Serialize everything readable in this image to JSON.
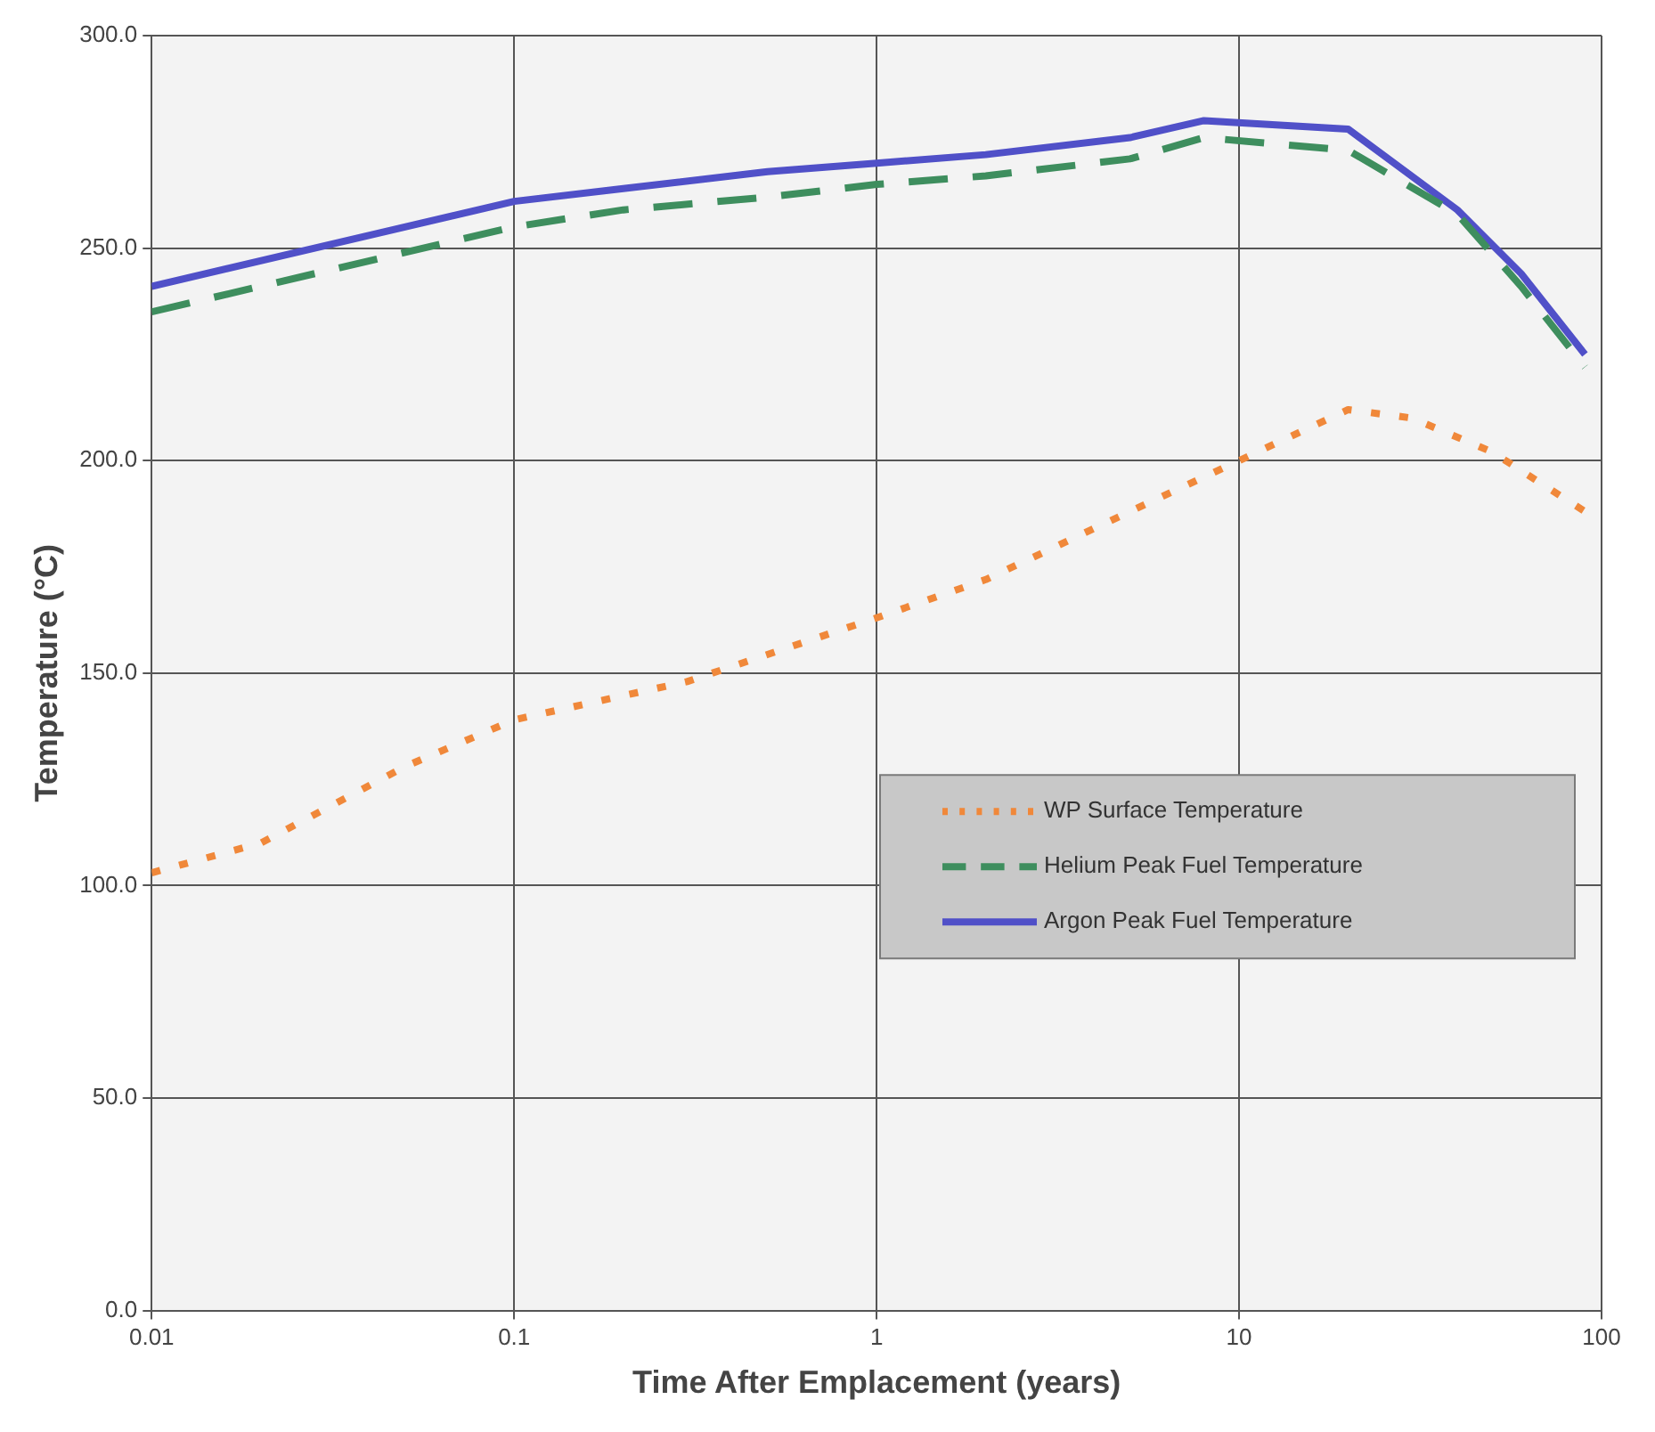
{
  "chart_data": {
    "type": "line",
    "xlabel": "Time After Emplacement (years)",
    "ylabel": "Temperature (°C)",
    "log": "x",
    "grid": true,
    "legend": "right",
    "marker": "none",
    "xlim": [
      0.01,
      100
    ],
    "xticks": [
      0.01,
      0.1,
      1,
      10,
      100
    ],
    "ylim": [
      0,
      300
    ],
    "yticks": [
      {
        "value": 0,
        "label": "0.0"
      },
      {
        "value": 50,
        "label": "50.0"
      },
      {
        "value": 100,
        "label": "100.0"
      },
      {
        "value": 150,
        "label": "150.0"
      },
      {
        "value": 200,
        "label": "200.0"
      },
      {
        "value": 250,
        "label": "250.0"
      },
      {
        "value": 300,
        "label": "300.0"
      }
    ],
    "series": [
      {
        "name": "WP Surface Temperature",
        "color": "#f0883a",
        "line_style": "dotted",
        "x": [
          0.01,
          0.02,
          0.05,
          0.1,
          0.3,
          1,
          2,
          5,
          10,
          20,
          30,
          50,
          90
        ],
        "values": [
          103,
          110,
          128,
          139,
          148,
          163,
          172,
          188,
          200,
          212,
          210,
          202,
          188
        ]
      },
      {
        "name": "Helium Peak Fuel Temperature",
        "color": "#3e8e5e",
        "line_style": "dashed",
        "x": [
          0.01,
          0.1,
          0.2,
          0.5,
          1,
          2,
          5,
          8,
          20,
          40,
          60,
          90
        ],
        "values": [
          235,
          255,
          259,
          262,
          265,
          267,
          271,
          276,
          273,
          258,
          241,
          222
        ]
      },
      {
        "name": "Argon Peak Fuel Temperature",
        "color": "#5050c8",
        "line_style": "solid",
        "x": [
          0.01,
          0.1,
          0.2,
          0.5,
          1,
          2,
          5,
          8,
          20,
          40,
          60,
          90
        ],
        "values": [
          241,
          261,
          264,
          268,
          270,
          272,
          276,
          280,
          278,
          259,
          244,
          225
        ]
      }
    ]
  }
}
